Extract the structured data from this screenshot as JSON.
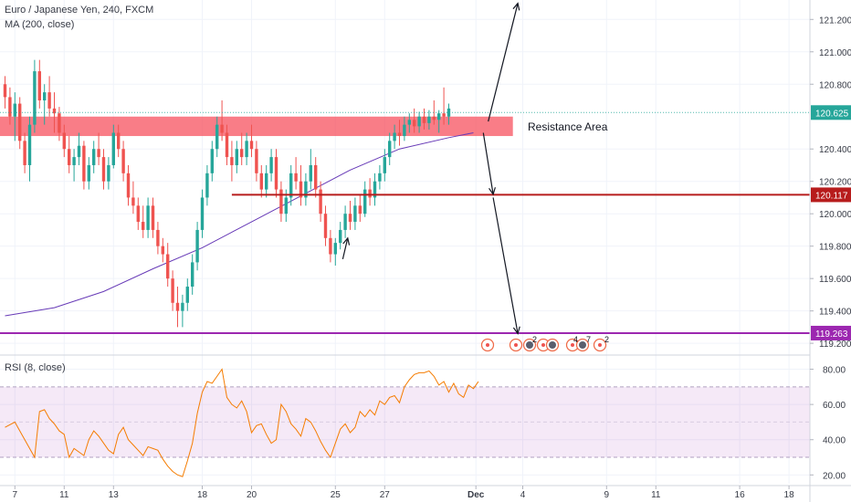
{
  "chart_data": {
    "type": "candlestick",
    "title": "Euro / Japanese Yen, 240, FXCM",
    "indicator_label": "MA (200, close)",
    "rsi_label": "RSI (8, close)",
    "annotation": "Resistance Area",
    "price_ylim": [
      119.15,
      121.32
    ],
    "price_ticks": [
      "121.200",
      "121.000",
      "120.800",
      "120.400",
      "120.200",
      "120.000",
      "119.800",
      "119.600",
      "119.400",
      "119.200"
    ],
    "rsi_ylim": [
      15,
      87
    ],
    "rsi_ticks": [
      "80.00",
      "60.00",
      "40.00",
      "20.00"
    ],
    "rsi_band": [
      30,
      70
    ],
    "x_ticks": [
      {
        "label": "7",
        "bar": 2
      },
      {
        "label": "11",
        "bar": 12
      },
      {
        "label": "13",
        "bar": 22
      },
      {
        "label": "18",
        "bar": 40
      },
      {
        "label": "20",
        "bar": 50
      },
      {
        "label": "25",
        "bar": 67
      },
      {
        "label": "27",
        "bar": 77
      },
      {
        "label": "Dec",
        "bar": 95.5
      },
      {
        "label": "4",
        "bar": 105
      },
      {
        "label": "9",
        "bar": 122
      },
      {
        "label": "11",
        "bar": 132
      },
      {
        "label": "16",
        "bar": 149
      },
      {
        "label": "18",
        "bar": 159
      }
    ],
    "price_labels": [
      {
        "value": 120.625,
        "label": "120.625",
        "color": "#26a69a"
      },
      {
        "value": 120.117,
        "label": "120.117",
        "color": "#b71c1c"
      },
      {
        "value": 119.263,
        "label": "119.263",
        "color": "#9c27b0"
      }
    ],
    "resistance_zone": {
      "low": 120.48,
      "high": 120.6,
      "from_bar": 0,
      "to_bar": 103
    },
    "support_line": {
      "value": 120.117,
      "from_bar": 46
    },
    "bottom_line": {
      "value": 119.263
    },
    "arrows": [
      {
        "from_bar": 98,
        "from": 120.57,
        "to_bar": 104,
        "to": 121.3
      },
      {
        "from_bar": 97,
        "from": 120.5,
        "to_bar": 99,
        "to": 120.12
      },
      {
        "from_bar": 99,
        "from": 120.1,
        "to_bar": 104,
        "to": 119.26
      },
      {
        "from_bar": 68.5,
        "from": 119.72,
        "to_bar": 69.5,
        "to": 119.85
      }
    ],
    "event_labels": [
      "2",
      "4",
      "7",
      "2"
    ],
    "ohlc": [
      [
        120.8,
        120.85,
        120.65,
        120.72
      ],
      [
        120.72,
        120.78,
        120.55,
        120.6
      ],
      [
        120.6,
        120.75,
        120.45,
        120.68
      ],
      [
        120.68,
        120.72,
        120.4,
        120.45
      ],
      [
        120.45,
        120.5,
        120.25,
        120.3
      ],
      [
        120.3,
        120.6,
        120.2,
        120.55
      ],
      [
        120.55,
        120.95,
        120.5,
        120.88
      ],
      [
        120.88,
        120.95,
        120.65,
        120.7
      ],
      [
        120.7,
        120.8,
        120.55,
        120.75
      ],
      [
        120.75,
        120.85,
        120.6,
        120.65
      ],
      [
        120.65,
        120.75,
        120.5,
        120.62
      ],
      [
        120.62,
        120.66,
        120.45,
        120.5
      ],
      [
        120.5,
        120.55,
        120.35,
        120.4
      ],
      [
        120.4,
        120.48,
        120.25,
        120.3
      ],
      [
        120.3,
        120.4,
        120.2,
        120.35
      ],
      [
        120.35,
        120.5,
        120.3,
        120.42
      ],
      [
        120.42,
        120.45,
        120.15,
        120.2
      ],
      [
        120.2,
        120.35,
        120.15,
        120.3
      ],
      [
        120.3,
        120.45,
        120.25,
        120.4
      ],
      [
        120.4,
        120.5,
        120.3,
        120.35
      ],
      [
        120.35,
        120.4,
        120.15,
        120.2
      ],
      [
        120.2,
        120.35,
        120.15,
        120.3
      ],
      [
        120.3,
        120.55,
        120.28,
        120.5
      ],
      [
        120.5,
        120.55,
        120.35,
        120.4
      ],
      [
        120.4,
        120.45,
        120.2,
        120.25
      ],
      [
        120.25,
        120.3,
        120.05,
        120.1
      ],
      [
        120.1,
        120.2,
        120.0,
        120.05
      ],
      [
        120.05,
        120.1,
        119.9,
        119.95
      ],
      [
        119.95,
        120.05,
        119.85,
        119.9
      ],
      [
        119.9,
        120.1,
        119.85,
        120.05
      ],
      [
        120.05,
        120.1,
        119.85,
        119.9
      ],
      [
        119.9,
        119.95,
        119.75,
        119.8
      ],
      [
        119.8,
        119.85,
        119.7,
        119.75
      ],
      [
        119.75,
        119.82,
        119.55,
        119.6
      ],
      [
        119.6,
        119.65,
        119.4,
        119.45
      ],
      [
        119.45,
        119.55,
        119.3,
        119.4
      ],
      [
        119.4,
        119.5,
        119.3,
        119.45
      ],
      [
        119.45,
        119.6,
        119.4,
        119.55
      ],
      [
        119.55,
        119.75,
        119.5,
        119.7
      ],
      [
        119.7,
        119.95,
        119.65,
        119.9
      ],
      [
        119.9,
        120.15,
        119.85,
        120.1
      ],
      [
        120.1,
        120.3,
        120.05,
        120.25
      ],
      [
        120.25,
        120.45,
        120.2,
        120.4
      ],
      [
        120.4,
        120.6,
        120.35,
        120.55
      ],
      [
        120.55,
        120.7,
        120.45,
        120.5
      ],
      [
        120.5,
        120.55,
        120.3,
        120.35
      ],
      [
        120.35,
        120.45,
        120.2,
        120.3
      ],
      [
        120.3,
        120.45,
        120.25,
        120.4
      ],
      [
        120.4,
        120.5,
        120.3,
        120.35
      ],
      [
        120.35,
        120.5,
        120.3,
        120.45
      ],
      [
        120.45,
        120.55,
        120.35,
        120.4
      ],
      [
        120.4,
        120.45,
        120.2,
        120.25
      ],
      [
        120.25,
        120.3,
        120.1,
        120.15
      ],
      [
        120.15,
        120.3,
        120.1,
        120.25
      ],
      [
        120.25,
        120.4,
        120.2,
        120.35
      ],
      [
        120.35,
        120.4,
        120.1,
        120.15
      ],
      [
        120.15,
        120.2,
        119.95,
        120.0
      ],
      [
        120.0,
        120.15,
        119.95,
        120.1
      ],
      [
        120.1,
        120.3,
        120.05,
        120.25
      ],
      [
        120.25,
        120.35,
        120.15,
        120.2
      ],
      [
        120.2,
        120.3,
        120.05,
        120.1
      ],
      [
        120.1,
        120.25,
        120.05,
        120.2
      ],
      [
        120.2,
        120.4,
        120.15,
        120.3
      ],
      [
        120.3,
        120.35,
        120.1,
        120.15
      ],
      [
        120.15,
        120.2,
        119.95,
        120.0
      ],
      [
        120.0,
        120.05,
        119.8,
        119.85
      ],
      [
        119.85,
        119.9,
        119.7,
        119.75
      ],
      [
        119.75,
        119.85,
        119.68,
        119.82
      ],
      [
        119.82,
        119.95,
        119.78,
        119.9
      ],
      [
        119.9,
        120.05,
        119.85,
        120.0
      ],
      [
        120.0,
        120.08,
        119.9,
        119.95
      ],
      [
        119.95,
        120.1,
        119.9,
        120.05
      ],
      [
        120.05,
        120.12,
        119.95,
        120.0
      ],
      [
        120.0,
        120.2,
        119.98,
        120.15
      ],
      [
        120.15,
        120.22,
        120.05,
        120.1
      ],
      [
        120.1,
        120.25,
        120.05,
        120.2
      ],
      [
        120.2,
        120.3,
        120.15,
        120.25
      ],
      [
        120.25,
        120.4,
        120.2,
        120.35
      ],
      [
        120.35,
        120.5,
        120.3,
        120.45
      ],
      [
        120.45,
        120.55,
        120.4,
        120.5
      ],
      [
        120.5,
        120.58,
        120.42,
        120.48
      ],
      [
        120.48,
        120.6,
        120.45,
        120.55
      ],
      [
        120.55,
        120.62,
        120.5,
        120.58
      ],
      [
        120.58,
        120.65,
        120.5,
        120.54
      ],
      [
        120.54,
        120.63,
        120.5,
        120.6
      ],
      [
        120.6,
        120.65,
        120.52,
        120.56
      ],
      [
        120.56,
        120.64,
        120.52,
        120.6
      ],
      [
        120.6,
        120.7,
        120.55,
        120.58
      ],
      [
        120.58,
        120.64,
        120.5,
        120.62
      ],
      [
        120.62,
        120.78,
        120.55,
        120.6
      ],
      [
        120.6,
        120.68,
        120.55,
        120.65
      ]
    ],
    "ma": [
      [
        0,
        119.37
      ],
      [
        10,
        119.42
      ],
      [
        20,
        119.52
      ],
      [
        30,
        119.66
      ],
      [
        40,
        119.79
      ],
      [
        50,
        119.95
      ],
      [
        60,
        120.11
      ],
      [
        70,
        120.27
      ],
      [
        80,
        120.4
      ],
      [
        90,
        120.47
      ],
      [
        95,
        120.5
      ]
    ],
    "rsi": [
      [
        0,
        47
      ],
      [
        2,
        50
      ],
      [
        3,
        45
      ],
      [
        4,
        40
      ],
      [
        5,
        35
      ],
      [
        6,
        30
      ],
      [
        7,
        56
      ],
      [
        8,
        57
      ],
      [
        9,
        52
      ],
      [
        10,
        49
      ],
      [
        11,
        45
      ],
      [
        12,
        43
      ],
      [
        13,
        30
      ],
      [
        14,
        35
      ],
      [
        15,
        33
      ],
      [
        16,
        31
      ],
      [
        17,
        40
      ],
      [
        18,
        45
      ],
      [
        19,
        42
      ],
      [
        20,
        38
      ],
      [
        21,
        34
      ],
      [
        22,
        32
      ],
      [
        23,
        43
      ],
      [
        24,
        47
      ],
      [
        25,
        40
      ],
      [
        26,
        37
      ],
      [
        27,
        34
      ],
      [
        28,
        31
      ],
      [
        29,
        36
      ],
      [
        30,
        35
      ],
      [
        31,
        34
      ],
      [
        32,
        29
      ],
      [
        33,
        25
      ],
      [
        34,
        22
      ],
      [
        35,
        20
      ],
      [
        36,
        19
      ],
      [
        37,
        28
      ],
      [
        38,
        38
      ],
      [
        39,
        55
      ],
      [
        40,
        67
      ],
      [
        41,
        73
      ],
      [
        42,
        72
      ],
      [
        43,
        76
      ],
      [
        44,
        80
      ],
      [
        45,
        64
      ],
      [
        46,
        60
      ],
      [
        47,
        58
      ],
      [
        48,
        62
      ],
      [
        49,
        56
      ],
      [
        50,
        44
      ],
      [
        51,
        48
      ],
      [
        52,
        49
      ],
      [
        53,
        43
      ],
      [
        54,
        38
      ],
      [
        55,
        40
      ],
      [
        56,
        60
      ],
      [
        57,
        56
      ],
      [
        58,
        49
      ],
      [
        59,
        46
      ],
      [
        60,
        42
      ],
      [
        61,
        52
      ],
      [
        62,
        50
      ],
      [
        63,
        45
      ],
      [
        64,
        39
      ],
      [
        65,
        34
      ],
      [
        66,
        30
      ],
      [
        67,
        38
      ],
      [
        68,
        46
      ],
      [
        69,
        49
      ],
      [
        70,
        44
      ],
      [
        71,
        47
      ],
      [
        72,
        56
      ],
      [
        73,
        53
      ],
      [
        74,
        57
      ],
      [
        75,
        54
      ],
      [
        76,
        62
      ],
      [
        77,
        60
      ],
      [
        78,
        64
      ],
      [
        79,
        65
      ],
      [
        80,
        61
      ],
      [
        81,
        70
      ],
      [
        82,
        74
      ],
      [
        83,
        77
      ],
      [
        84,
        78
      ],
      [
        85,
        78
      ],
      [
        86,
        79
      ],
      [
        87,
        76
      ],
      [
        88,
        71
      ],
      [
        89,
        73
      ],
      [
        90,
        67
      ],
      [
        91,
        72
      ],
      [
        92,
        66
      ],
      [
        93,
        64
      ],
      [
        94,
        71
      ],
      [
        95,
        69
      ],
      [
        96,
        73
      ]
    ]
  }
}
